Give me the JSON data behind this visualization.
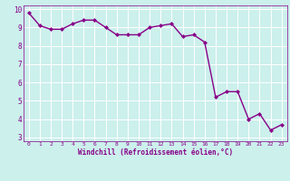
{
  "x": [
    0,
    1,
    2,
    3,
    4,
    5,
    6,
    7,
    8,
    9,
    10,
    11,
    12,
    13,
    14,
    15,
    16,
    17,
    18,
    19,
    20,
    21,
    22,
    23
  ],
  "y": [
    9.8,
    9.1,
    8.9,
    8.9,
    9.2,
    9.4,
    9.4,
    9.0,
    8.6,
    8.6,
    8.6,
    9.0,
    9.1,
    9.2,
    8.5,
    8.6,
    8.2,
    5.2,
    5.5,
    5.5,
    4.0,
    4.3,
    3.4,
    3.7
  ],
  "line_color": "#880088",
  "marker": "D",
  "marker_size": 2.0,
  "background_color": "#ccf0ec",
  "grid_color": "#ffffff",
  "xlabel": "Windchill (Refroidissement éolien,°C)",
  "xlabel_color": "#880088",
  "tick_color": "#880088",
  "label_color": "#880088",
  "ylim": [
    2.8,
    10.2
  ],
  "xlim": [
    -0.5,
    23.5
  ],
  "yticks": [
    3,
    4,
    5,
    6,
    7,
    8,
    9,
    10
  ],
  "xticks": [
    0,
    1,
    2,
    3,
    4,
    5,
    6,
    7,
    8,
    9,
    10,
    11,
    12,
    13,
    14,
    15,
    16,
    17,
    18,
    19,
    20,
    21,
    22,
    23
  ],
  "spine_color": "#880088",
  "linewidth": 1.0,
  "bottom_bar_color": "#880088"
}
